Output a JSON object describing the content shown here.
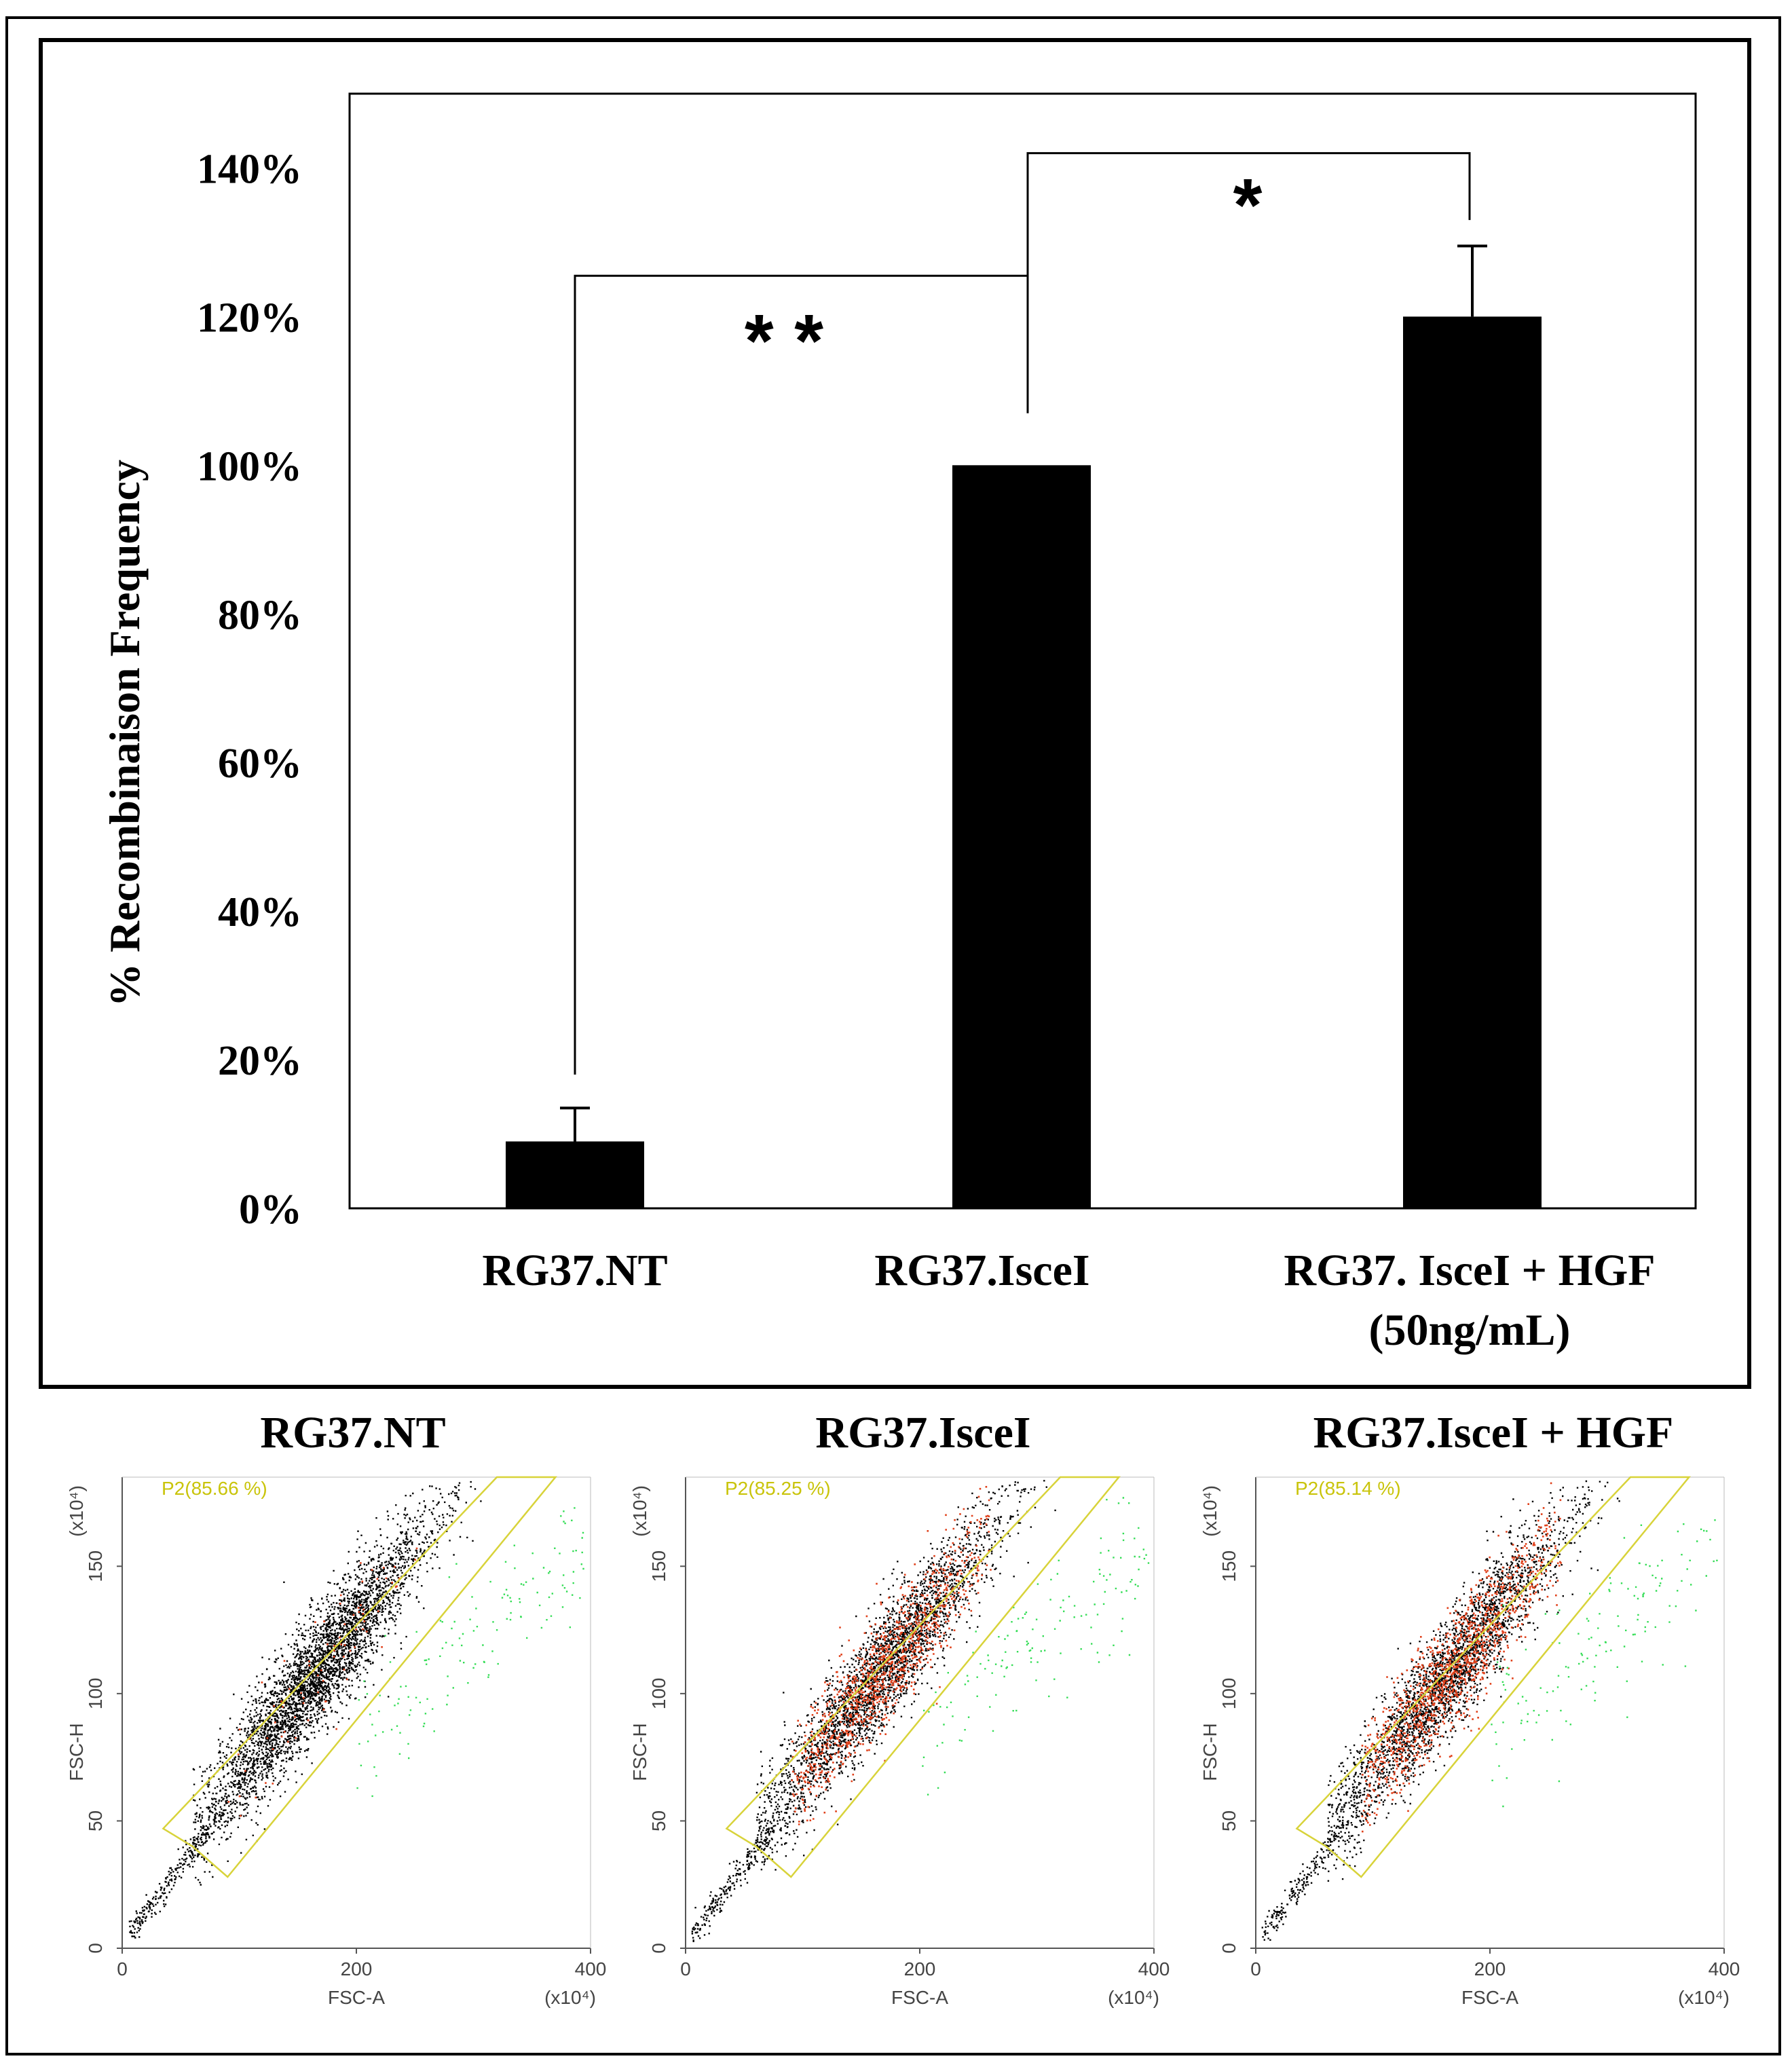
{
  "chart_data": [
    {
      "type": "bar",
      "title": "",
      "ylabel": "% Recombinaison Frequency",
      "xlabel": "",
      "ylim": [
        0,
        150
      ],
      "ytick_values": [
        0,
        20,
        40,
        60,
        80,
        100,
        120,
        140
      ],
      "ytick_labels": [
        "0%",
        "20%",
        "40%",
        "60%",
        "80%",
        "100%",
        "120%",
        "140%"
      ],
      "categories": [
        "RG37.NT",
        "RG37.IsceI",
        "RG37. IsceI + HGF (50ng/mL)"
      ],
      "category_lines": [
        [
          "RG37.NT"
        ],
        [
          "RG37.IsceI"
        ],
        [
          "RG37. IsceI + HGF",
          "(50ng/mL)"
        ]
      ],
      "values": [
        9,
        100,
        120
      ],
      "errors": [
        4.5,
        0,
        9.5
      ],
      "significance": [
        {
          "between": [
            0,
            1
          ],
          "label": "**"
        },
        {
          "between": [
            1,
            2
          ],
          "label": "*"
        }
      ]
    },
    {
      "type": "scatter",
      "panels": [
        {
          "title": "RG37.NT",
          "gate": "P2(85.66 %)",
          "red_fraction": 0.02
        },
        {
          "title": "RG37.IsceI",
          "gate": "P2(85.25 %)",
          "red_fraction": 0.3
        },
        {
          "title": "RG37.IsceI + HGF",
          "gate": "P2(85.14 %)",
          "red_fraction": 0.34
        }
      ],
      "xlabel": "FSC-A",
      "ylabel": "FSC-H",
      "x_scale_label": "(x10⁴)",
      "y_scale_label": "(x10⁴)",
      "xlim": [
        0,
        400
      ],
      "ylim": [
        0,
        185
      ],
      "xticks": [
        "0",
        "200",
        "400"
      ],
      "yticks": [
        "0",
        "50",
        "100",
        "150"
      ]
    }
  ],
  "colors": {
    "bar": "#000000",
    "gate": "#d8d33a",
    "dots": "#000000",
    "dots_hot": "#e0401a",
    "dots_out": "#33dd55"
  }
}
